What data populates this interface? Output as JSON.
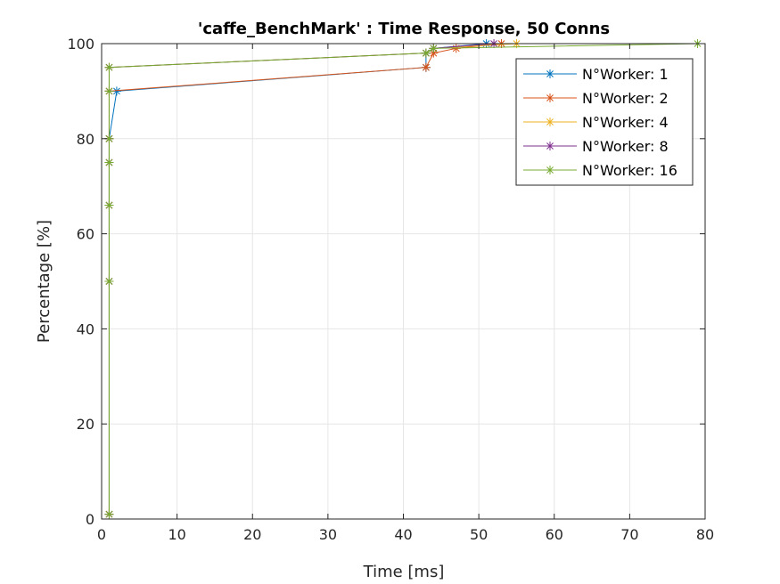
{
  "chart_data": {
    "type": "line",
    "title": "'caffe_BenchMark' : Time Response, 50 Conns",
    "xlabel": "Time [ms]",
    "ylabel": "Percentage [%]",
    "xlim": [
      0,
      80
    ],
    "ylim": [
      0,
      100
    ],
    "xticks": [
      0,
      10,
      20,
      30,
      40,
      50,
      60,
      70,
      80
    ],
    "yticks": [
      0,
      20,
      40,
      60,
      80,
      100
    ],
    "grid": true,
    "legend_position": "top-right",
    "marker": "asterisk",
    "series": [
      {
        "name": "N°Worker: 1",
        "color": "#0072BD",
        "points": [
          [
            1,
            1
          ],
          [
            1,
            50
          ],
          [
            1,
            66
          ],
          [
            1,
            75
          ],
          [
            1,
            80
          ],
          [
            2,
            90
          ],
          [
            43,
            95
          ],
          [
            43,
            98
          ],
          [
            44,
            99
          ],
          [
            51,
            100
          ]
        ]
      },
      {
        "name": "N°Worker: 2",
        "color": "#D95319",
        "points": [
          [
            1,
            1
          ],
          [
            1,
            50
          ],
          [
            1,
            66
          ],
          [
            1,
            75
          ],
          [
            1,
            80
          ],
          [
            1,
            90
          ],
          [
            43,
            95
          ],
          [
            44,
            98
          ],
          [
            47,
            99
          ],
          [
            53,
            100
          ]
        ]
      },
      {
        "name": "N°Worker: 4",
        "color": "#EDB120",
        "points": [
          [
            1,
            1
          ],
          [
            1,
            50
          ],
          [
            1,
            66
          ],
          [
            1,
            75
          ],
          [
            1,
            80
          ],
          [
            1,
            90
          ],
          [
            1,
            95
          ],
          [
            43,
            98
          ],
          [
            44,
            99
          ],
          [
            55,
            100
          ]
        ]
      },
      {
        "name": "N°Worker: 8",
        "color": "#7E2F8E",
        "points": [
          [
            1,
            1
          ],
          [
            1,
            50
          ],
          [
            1,
            66
          ],
          [
            1,
            75
          ],
          [
            1,
            80
          ],
          [
            1,
            90
          ],
          [
            1,
            95
          ],
          [
            43,
            98
          ],
          [
            44,
            99
          ],
          [
            52,
            100
          ]
        ]
      },
      {
        "name": "N°Worker: 16",
        "color": "#77AC30",
        "points": [
          [
            1,
            1
          ],
          [
            1,
            50
          ],
          [
            1,
            66
          ],
          [
            1,
            75
          ],
          [
            1,
            80
          ],
          [
            1,
            90
          ],
          [
            1,
            95
          ],
          [
            43,
            98
          ],
          [
            44,
            99
          ],
          [
            79,
            100
          ]
        ]
      }
    ]
  }
}
